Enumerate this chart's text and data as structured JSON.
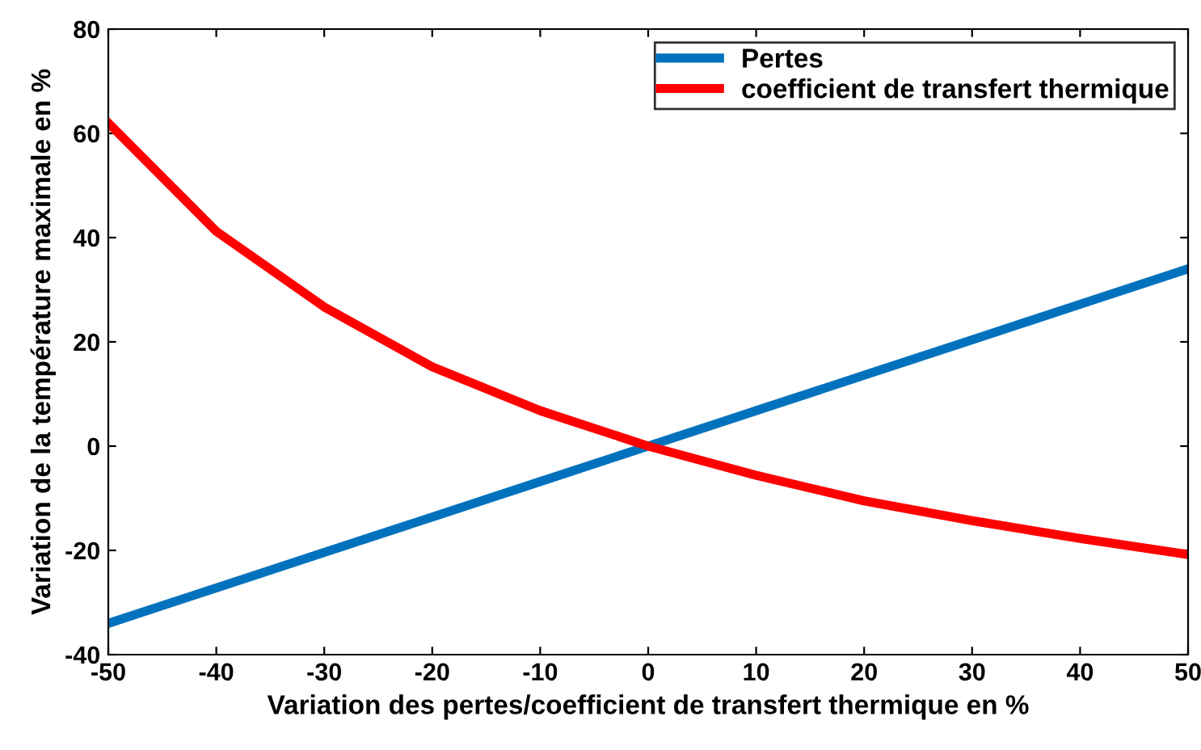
{
  "chart_data": {
    "type": "line",
    "xlabel": "Variation des pertes/coefficient de transfert thermique en %",
    "ylabel": "Variation de la température maximale en %",
    "x": [
      -50,
      -40,
      -30,
      -20,
      -10,
      0,
      10,
      20,
      30,
      40,
      50
    ],
    "series": [
      {
        "name": "Pertes",
        "color": "#0072bd",
        "values": [
          -34,
          -27.2,
          -20.4,
          -13.6,
          -6.8,
          0,
          6.8,
          13.6,
          20.4,
          27.2,
          34
        ]
      },
      {
        "name": "coefficient de transfert thermique",
        "color": "#ff0000",
        "values": [
          62,
          41.2,
          26.7,
          15.2,
          6.8,
          0,
          -5.6,
          -10.5,
          -14.3,
          -17.7,
          -20.8
        ]
      }
    ],
    "xlim": [
      -50,
      50
    ],
    "xticks": [
      -50,
      -40,
      -30,
      -20,
      -10,
      0,
      10,
      20,
      30,
      40,
      50
    ],
    "ylim": [
      -40,
      80
    ],
    "yticks": [
      -40,
      -20,
      0,
      20,
      40,
      60,
      80
    ],
    "grid": false,
    "legend": "top right",
    "marker": "none",
    "line_style": "solid"
  }
}
